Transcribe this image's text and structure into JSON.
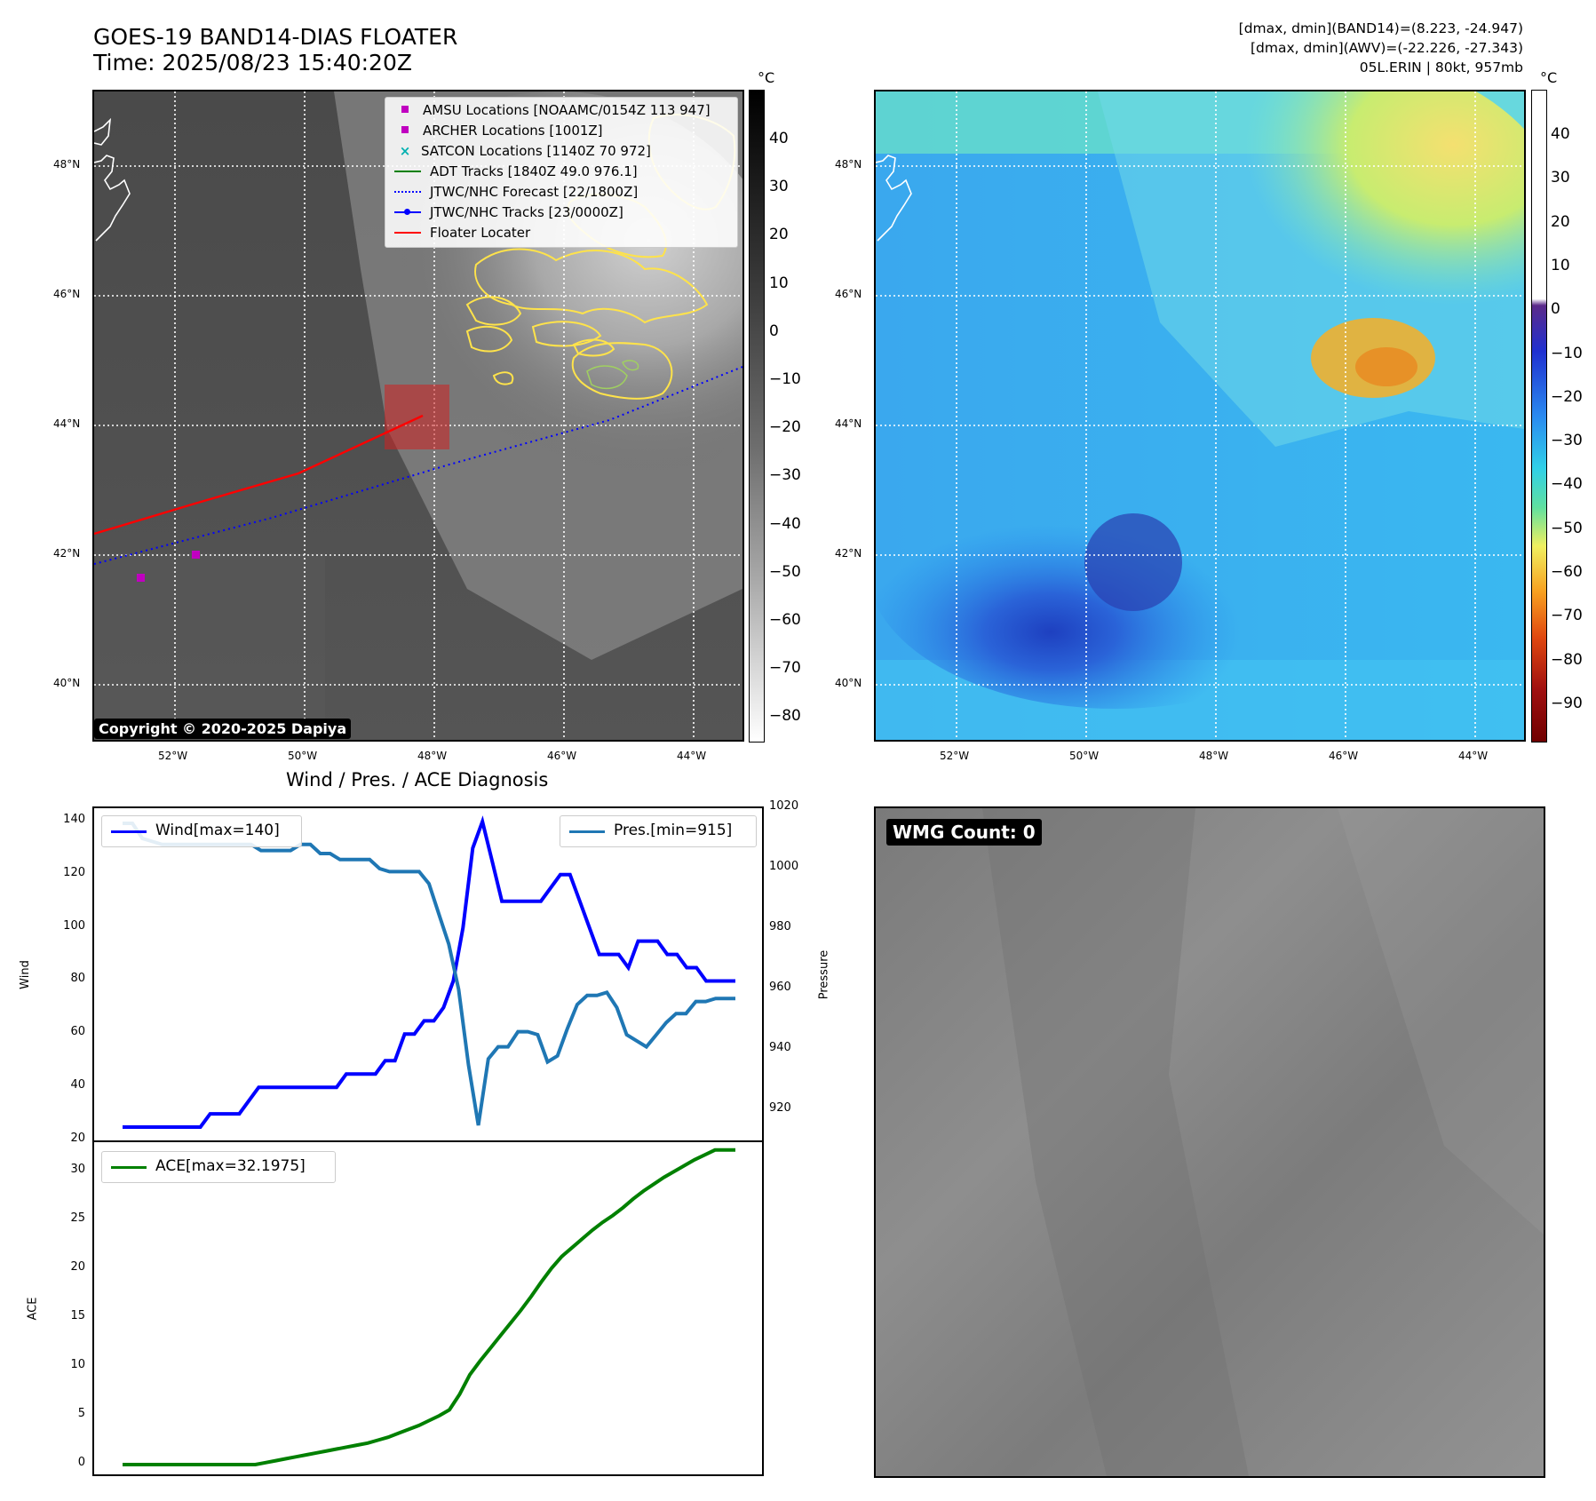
{
  "header": {
    "title_line1": "GOES-19 BAND14-DIAS FLOATER",
    "title_line2": "Time: 2025/08/23 15:40:20Z",
    "dmax_band14": "[dmax, dmin](BAND14)=(8.223, -24.947)",
    "dmax_awv": "[dmax, dmin](AWV)=(-22.226, -27.343)",
    "storm_info": "05L.ERIN | 80kt, 957mb"
  },
  "map_axes": {
    "lat_labels": [
      "48°N",
      "46°N",
      "44°N",
      "42°N",
      "40°N"
    ],
    "lon_labels": [
      "52°W",
      "50°W",
      "48°W",
      "46°W",
      "44°W"
    ]
  },
  "ir_panel": {
    "copyright": "Copyright © 2020-2025 Dapiya",
    "colorbar_unit": "°C",
    "colorbar_ticks": [
      "40",
      "30",
      "20",
      "10",
      "0",
      "−10",
      "−20",
      "−30",
      "−40",
      "−50",
      "−60",
      "−70",
      "−80"
    ],
    "legend": [
      {
        "label": "AMSU Locations [NOAAMC/0154Z 113 947]",
        "color": "#c000c0",
        "marker": "square"
      },
      {
        "label": "ARCHER Locations [1001Z]",
        "color": "#c000c0",
        "marker": "square"
      },
      {
        "label": "SATCON Locations [1140Z 70 972]",
        "color": "#00b0b0",
        "marker": "x"
      },
      {
        "label": "ADT Tracks [1840Z 49.0 976.1]",
        "color": "#008000",
        "marker": "line"
      },
      {
        "label": "JTWC/NHC Forecast [22/1800Z]",
        "color": "#0000ff",
        "marker": "dotted"
      },
      {
        "label": "JTWC/NHC Tracks [23/0000Z]",
        "color": "#0000ff",
        "marker": "line-dot"
      },
      {
        "label": "Floater Locater",
        "color": "#ff0000",
        "marker": "line"
      }
    ]
  },
  "wv_panel": {
    "colorbar_unit": "°C",
    "colorbar_ticks": [
      "40",
      "30",
      "20",
      "10",
      "0",
      "−10",
      "−20",
      "−30",
      "−40",
      "−50",
      "−60",
      "−70",
      "−80",
      "−90"
    ]
  },
  "diagnosis": {
    "title": "Wind / Pres. / ACE Diagnosis",
    "wind_ylabel": "Wind",
    "pres_ylabel": "Pressure",
    "ace_ylabel": "ACE",
    "wind_legend": "Wind[max=140]",
    "pres_legend": "Pres.[min=915]",
    "ace_legend": "ACE[max=32.1975]",
    "wind_ticks": [
      "140",
      "120",
      "100",
      "80",
      "60",
      "40",
      "20"
    ],
    "pres_ticks": [
      "1020",
      "1000",
      "980",
      "960",
      "940",
      "920"
    ],
    "ace_ticks": [
      "30",
      "25",
      "20",
      "15",
      "10",
      "5",
      "0"
    ]
  },
  "wmg_panel": {
    "badge": "WMG Count: 0"
  },
  "chart_data": [
    {
      "type": "line",
      "title": "Wind / Pres. / ACE Diagnosis",
      "ylabel": "Wind",
      "ylim": [
        20,
        145
      ],
      "series": [
        {
          "name": "Wind[max=140]",
          "color": "#0000ff",
          "values": [
            25,
            25,
            25,
            25,
            25,
            25,
            25,
            25,
            25,
            30,
            30,
            30,
            30,
            35,
            40,
            40,
            40,
            40,
            40,
            40,
            40,
            40,
            40,
            45,
            45,
            45,
            45,
            50,
            50,
            60,
            60,
            65,
            65,
            70,
            80,
            100,
            130,
            140,
            125,
            110,
            110,
            110,
            110,
            110,
            115,
            120,
            120,
            110,
            100,
            90,
            90,
            90,
            85,
            95,
            95,
            95,
            90,
            90,
            85,
            85,
            80,
            80,
            80,
            80
          ]
        }
      ]
    },
    {
      "type": "line",
      "ylabel": "Pressure",
      "ylim": [
        910,
        1020
      ],
      "series": [
        {
          "name": "Pres.[min=915]",
          "color": "#1f77b4",
          "values": [
            1015,
            1015,
            1010,
            1009,
            1008,
            1008,
            1008,
            1008,
            1008,
            1008,
            1008,
            1008,
            1008,
            1008,
            1006,
            1006,
            1006,
            1006,
            1008,
            1008,
            1005,
            1005,
            1003,
            1003,
            1003,
            1003,
            1000,
            999,
            999,
            999,
            999,
            995,
            985,
            975,
            960,
            935,
            915,
            937,
            941,
            941,
            946,
            946,
            945,
            936,
            938,
            947,
            955,
            958,
            958,
            959,
            954,
            945,
            943,
            941,
            945,
            949,
            952,
            952,
            956,
            956,
            957,
            957,
            957
          ]
        }
      ]
    },
    {
      "type": "line",
      "ylabel": "ACE",
      "ylim": [
        -1,
        33
      ],
      "series": [
        {
          "name": "ACE[max=32.1975]",
          "color": "#008000",
          "values": [
            0,
            0,
            0,
            0,
            0,
            0,
            0,
            0,
            0,
            0,
            0,
            0,
            0,
            0,
            0.2,
            0.4,
            0.6,
            0.8,
            1.0,
            1.2,
            1.4,
            1.6,
            1.8,
            2.0,
            2.2,
            2.5,
            2.8,
            3.2,
            3.6,
            4.0,
            4.5,
            5.0,
            5.6,
            7.2,
            9.2,
            10.6,
            11.9,
            13.2,
            14.5,
            15.8,
            17.2,
            18.7,
            20.1,
            21.3,
            22.2,
            23.1,
            24.0,
            24.8,
            25.5,
            26.3,
            27.2,
            28.0,
            28.7,
            29.4,
            30.0,
            30.6,
            31.2,
            31.7,
            32.2,
            32.2,
            32.2
          ]
        }
      ]
    }
  ]
}
